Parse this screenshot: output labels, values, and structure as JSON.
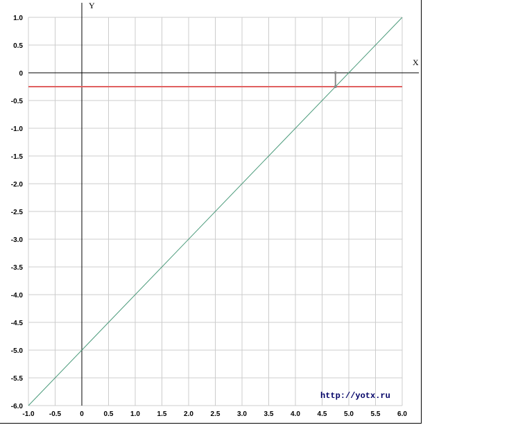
{
  "chart_data": {
    "type": "line",
    "xlabel": "X",
    "ylabel": "Y",
    "xlim": [
      -1.0,
      6.0
    ],
    "ylim": [
      -6.0,
      1.0
    ],
    "grid": true,
    "x_ticks": [
      "-1.0",
      "-0.5",
      "0",
      "0.5",
      "1.0",
      "1.5",
      "2.0",
      "2.5",
      "3.0",
      "3.5",
      "4.0",
      "4.5",
      "5.0",
      "5.5",
      "6.0"
    ],
    "y_ticks": [
      "1.0",
      "0.5",
      "0",
      "-0.5",
      "-1.0",
      "-1.5",
      "-2.0",
      "-2.5",
      "-3.0",
      "-3.5",
      "-4.0",
      "-4.5",
      "-5.0",
      "-5.5",
      "-6.0"
    ],
    "series": [
      {
        "x": [
          -1.0,
          6.0
        ],
        "y": [
          -6.0,
          1.0
        ],
        "color": "#4a9a7a"
      },
      {
        "x": [
          -1.0,
          6.0
        ],
        "y": [
          -0.25,
          -0.25
        ],
        "color": "#e06060"
      }
    ],
    "marker_segment": {
      "x": 4.75,
      "y": [
        0,
        -0.25
      ],
      "color": "#888888"
    },
    "colors": {
      "grid": "#cccccc",
      "axis": "#000000"
    }
  },
  "watermark": "http://yotx.ru"
}
